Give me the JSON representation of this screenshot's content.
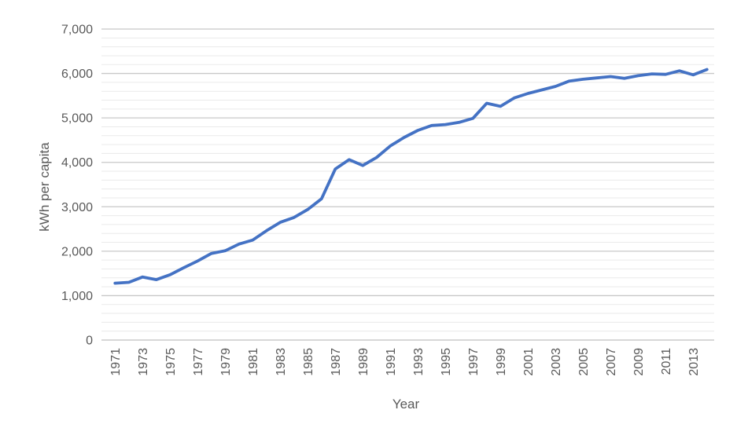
{
  "chart_data": {
    "type": "line",
    "title": "",
    "xlabel": "Year",
    "ylabel": "kWh per capita",
    "x": [
      1971,
      1972,
      1973,
      1974,
      1975,
      1976,
      1977,
      1978,
      1979,
      1980,
      1981,
      1982,
      1983,
      1984,
      1985,
      1986,
      1987,
      1988,
      1989,
      1990,
      1991,
      1992,
      1993,
      1994,
      1995,
      1996,
      1997,
      1998,
      1999,
      2000,
      2001,
      2002,
      2003,
      2004,
      2005,
      2006,
      2007,
      2008,
      2009,
      2010,
      2011,
      2012,
      2013,
      2014
    ],
    "series": [
      {
        "name": "kWh per capita",
        "values": [
          1280,
          1300,
          1420,
          1360,
          1470,
          1630,
          1780,
          1950,
          2010,
          2160,
          2250,
          2460,
          2650,
          2760,
          2940,
          3180,
          3850,
          4060,
          3930,
          4110,
          4370,
          4560,
          4720,
          4830,
          4850,
          4900,
          4990,
          5330,
          5260,
          5450,
          5550,
          5630,
          5710,
          5830,
          5870,
          5900,
          5930,
          5890,
          5950,
          5990,
          5980,
          6060,
          5970,
          6090
        ]
      }
    ],
    "ylim": [
      0,
      7000
    ],
    "y_major_step": 1000,
    "y_minor_step": 200,
    "y_tick_labels": [
      "0",
      "1,000",
      "2,000",
      "3,000",
      "4,000",
      "5,000",
      "6,000",
      "7,000"
    ],
    "x_tick_labels": [
      "1971",
      "1973",
      "1975",
      "1977",
      "1979",
      "1981",
      "1983",
      "1985",
      "1987",
      "1989",
      "1991",
      "1993",
      "1995",
      "1997",
      "1999",
      "2001",
      "2003",
      "2005",
      "2007",
      "2009",
      "2011",
      "2013"
    ],
    "x_label_every": 2,
    "grid": "horizontal-major-and-minor",
    "legend_position": "none",
    "markers": "none"
  },
  "colors": {
    "series_line": "#4472C4",
    "major_gridline": "#C8C8C8",
    "minor_gridline": "#EAEAEA",
    "axis_line": "#BFBFBF",
    "label_text": "#595959",
    "background": "#FFFFFF"
  }
}
